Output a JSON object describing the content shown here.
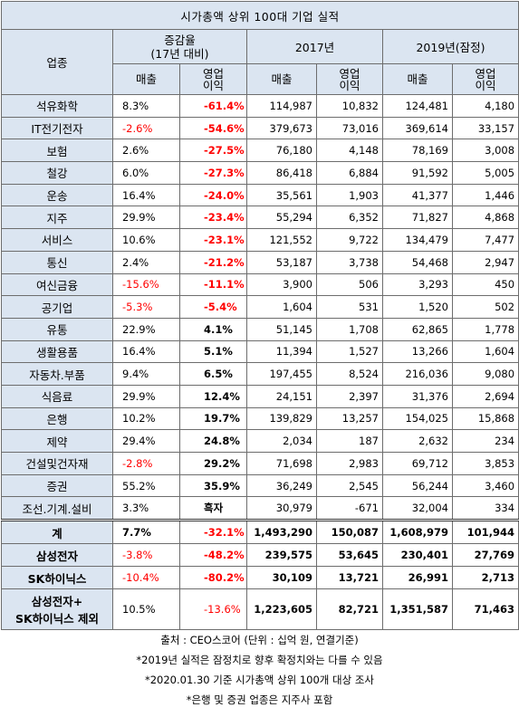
{
  "title": "시가총액 상위 100대 기업 실적",
  "headers": {
    "industry": "업종",
    "growth": "증감율",
    "growth_sub": "(17년 대비)",
    "y2017": "2017년",
    "y2019": "2019년(잠정)",
    "sales": "매출",
    "op_line1": "영업",
    "op_line2": "이익"
  },
  "rows": [
    {
      "name": "석유화학",
      "g_sales": "8.3%",
      "g_op": "-61.4%",
      "s17": "114,987",
      "o17": "10,832",
      "s19": "124,481",
      "o19": "4,180"
    },
    {
      "name": "IT전기전자",
      "g_sales": "-2.6%",
      "g_op": "-54.6%",
      "s17": "379,673",
      "o17": "73,016",
      "s19": "369,614",
      "o19": "33,157"
    },
    {
      "name": "보험",
      "g_sales": "2.6%",
      "g_op": "-27.5%",
      "s17": "76,180",
      "o17": "4,148",
      "s19": "78,169",
      "o19": "3,008"
    },
    {
      "name": "철강",
      "g_sales": "6.0%",
      "g_op": "-27.3%",
      "s17": "86,418",
      "o17": "6,884",
      "s19": "91,592",
      "o19": "5,005"
    },
    {
      "name": "운송",
      "g_sales": "16.4%",
      "g_op": "-24.0%",
      "s17": "35,561",
      "o17": "1,903",
      "s19": "41,377",
      "o19": "1,446"
    },
    {
      "name": "지주",
      "g_sales": "29.9%",
      "g_op": "-23.4%",
      "s17": "55,294",
      "o17": "6,352",
      "s19": "71,827",
      "o19": "4,868"
    },
    {
      "name": "서비스",
      "g_sales": "10.6%",
      "g_op": "-23.1%",
      "s17": "121,552",
      "o17": "9,722",
      "s19": "134,479",
      "o19": "7,477"
    },
    {
      "name": "통신",
      "g_sales": "2.4%",
      "g_op": "-21.2%",
      "s17": "53,187",
      "o17": "3,738",
      "s19": "54,468",
      "o19": "2,947"
    },
    {
      "name": "여신금융",
      "g_sales": "-15.6%",
      "g_op": "-11.1%",
      "s17": "3,900",
      "o17": "506",
      "s19": "3,293",
      "o19": "450"
    },
    {
      "name": "공기업",
      "g_sales": "-5.3%",
      "g_op": "-5.4%",
      "s17": "1,604",
      "o17": "531",
      "s19": "1,520",
      "o19": "502"
    },
    {
      "name": "유통",
      "g_sales": "22.9%",
      "g_op": "4.1%",
      "s17": "51,145",
      "o17": "1,708",
      "s19": "62,865",
      "o19": "1,778"
    },
    {
      "name": "생활용품",
      "g_sales": "16.4%",
      "g_op": "5.1%",
      "s17": "11,394",
      "o17": "1,527",
      "s19": "13,266",
      "o19": "1,604"
    },
    {
      "name": "자동차.부품",
      "g_sales": "9.4%",
      "g_op": "6.5%",
      "s17": "197,455",
      "o17": "8,524",
      "s19": "216,036",
      "o19": "9,080"
    },
    {
      "name": "식음료",
      "g_sales": "29.9%",
      "g_op": "12.4%",
      "s17": "24,151",
      "o17": "2,397",
      "s19": "31,376",
      "o19": "2,694"
    },
    {
      "name": "은행",
      "g_sales": "10.2%",
      "g_op": "19.7%",
      "s17": "139,829",
      "o17": "13,257",
      "s19": "154,025",
      "o19": "15,868"
    },
    {
      "name": "제약",
      "g_sales": "29.4%",
      "g_op": "24.8%",
      "s17": "2,034",
      "o17": "187",
      "s19": "2,632",
      "o19": "234"
    },
    {
      "name": "건설및건자재",
      "g_sales": "-2.8%",
      "g_op": "29.2%",
      "s17": "71,698",
      "o17": "2,983",
      "s19": "69,712",
      "o19": "3,853"
    },
    {
      "name": "증권",
      "g_sales": "55.2%",
      "g_op": "35.9%",
      "s17": "36,249",
      "o17": "2,545",
      "s19": "56,244",
      "o19": "3,460"
    },
    {
      "name": "조선.기계.설비",
      "g_sales": "3.3%",
      "g_op": "흑자",
      "s17": "30,979",
      "o17": "-671",
      "s19": "32,004",
      "o19": "334"
    }
  ],
  "total": {
    "name": "계",
    "g_sales": "7.7%",
    "g_op": "-32.1%",
    "s17": "1,493,290",
    "o17": "150,087",
    "s19": "1,608,979",
    "o19": "101,944"
  },
  "samsung": {
    "name": "삼성전자",
    "g_sales": "-3.8%",
    "g_op": "-48.2%",
    "s17": "239,575",
    "o17": "53,645",
    "s19": "230,401",
    "o19": "27,769"
  },
  "hynix": {
    "name": "SK하이닉스",
    "g_sales": "-10.4%",
    "g_op": "-80.2%",
    "s17": "30,109",
    "o17": "13,721",
    "s19": "26,991",
    "o19": "2,713"
  },
  "excl": {
    "name_line1": "삼성전자+",
    "name_line2": "SK하이닉스 제외",
    "g_sales": "10.5%",
    "g_op": "-13.6%",
    "s17": "1,223,605",
    "o17": "82,721",
    "s19": "1,351,587",
    "o19": "71,463"
  },
  "notes": [
    "출처 : CEO스코어 (단위 : 십억 원, 연결기준)",
    "*2019년 실적은 잠정치로 향후 확정치와는 다를 수 있음",
    "*2020.01.30 기준 시가총액 상위 100개 대상 조사",
    "*은행 및 증권 업종은 지주사 포함"
  ],
  "colors": {
    "header_bg": "#dbe5f1",
    "negative": "#ff0000",
    "border": "#6d6d6d"
  }
}
